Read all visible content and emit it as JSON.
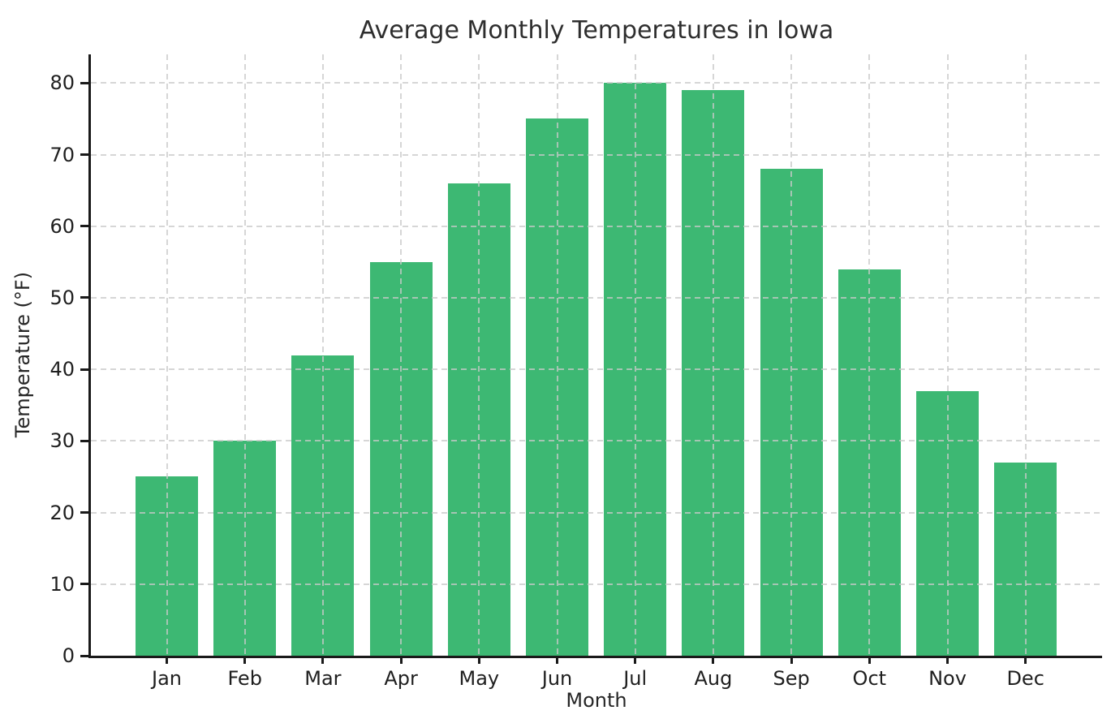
{
  "chart_data": {
    "type": "bar",
    "title": "Average Monthly Temperatures in Iowa",
    "xlabel": "Month",
    "ylabel": "Temperature (°F)",
    "categories": [
      "Jan",
      "Feb",
      "Mar",
      "Apr",
      "May",
      "Jun",
      "Jul",
      "Aug",
      "Sep",
      "Oct",
      "Nov",
      "Dec"
    ],
    "values": [
      25,
      30,
      42,
      55,
      66,
      75,
      80,
      79,
      68,
      54,
      37,
      27
    ],
    "yticks": [
      0,
      10,
      20,
      30,
      40,
      50,
      60,
      70,
      80
    ],
    "ylim": [
      0,
      84
    ],
    "bar_color": "#3db873",
    "grid": "dashed, on top of bars",
    "grid_color": "#cccccc",
    "legend_position": "none"
  }
}
